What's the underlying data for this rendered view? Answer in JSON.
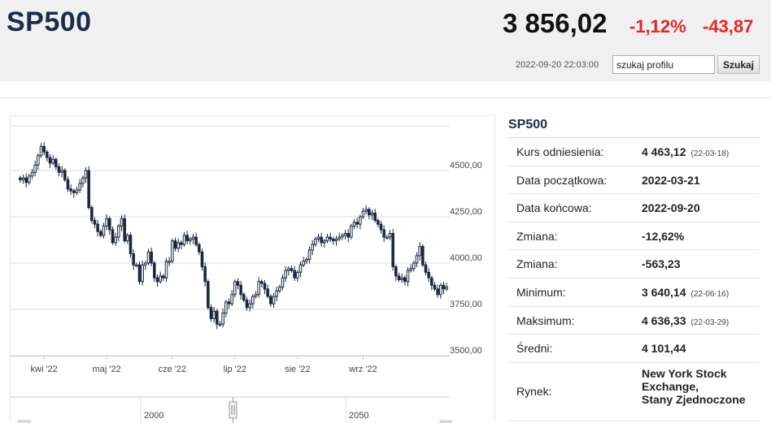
{
  "header": {
    "ticker": "SP500",
    "price": "3 856,02",
    "change_pct": "-1,12%",
    "change_abs": "-43,87",
    "timestamp": "2022-09-20 22:03:00",
    "search_placeholder": "szukaj profilu",
    "search_button": "Szukaj",
    "change_color": "#e4262a"
  },
  "info": {
    "title": "SP500",
    "rows": [
      {
        "label": "Kurs odniesienia:",
        "value": "4 463,12",
        "sub": "(22-03-18)"
      },
      {
        "label": "Data początkowa:",
        "value": "2022-03-21",
        "sub": ""
      },
      {
        "label": "Data końcowa:",
        "value": "2022-09-20",
        "sub": ""
      },
      {
        "label": "Zmiana:",
        "value": "-12,62%",
        "sub": ""
      },
      {
        "label": "Zmiana:",
        "value": "-563,23",
        "sub": ""
      },
      {
        "label": "Minimum:",
        "value": "3 640,14",
        "sub": "(22-06-16)"
      },
      {
        "label": "Maksimum:",
        "value": "4 636,33",
        "sub": "(22-03-29)"
      },
      {
        "label": "Średni:",
        "value": "4 101,44",
        "sub": ""
      }
    ],
    "market_label": "Rynek:",
    "market_value": [
      "New York Stock",
      "Exchange,",
      "Stany Zjednoczone"
    ]
  },
  "chart_data": {
    "type": "candlestick",
    "y_ticks": [
      "4500,00",
      "4250,00",
      "4000,00",
      "3750,00",
      "3500,00"
    ],
    "y_tick_values": [
      4500,
      4250,
      4000,
      3750,
      3500
    ],
    "ylim": [
      3500,
      4750
    ],
    "x_labels": [
      "kwi '22",
      "maj '22",
      "cze '22",
      "lip '22",
      "sie '22",
      "wrz '22"
    ],
    "x_label_positions": [
      8,
      29,
      51,
      72,
      93,
      115
    ],
    "navigator_labels": [
      "2000",
      "2050"
    ],
    "grid": "horizontal",
    "close": [
      4450,
      4460,
      4435,
      4470,
      4490,
      4530,
      4580,
      4630,
      4600,
      4570,
      4540,
      4560,
      4520,
      4490,
      4500,
      4450,
      4400,
      4390,
      4380,
      4395,
      4430,
      4460,
      4500,
      4300,
      4230,
      4210,
      4170,
      4150,
      4200,
      4240,
      4180,
      4110,
      4140,
      4200,
      4240,
      4120,
      4150,
      4050,
      3990,
      3990,
      3900,
      3990,
      4000,
      4060,
      4000,
      3920,
      3900,
      3930,
      3920,
      4010,
      4010,
      4120,
      4080,
      4110,
      4100,
      4150,
      4120,
      4130,
      4140,
      4100,
      4060,
      3980,
      3900,
      3760,
      3700,
      3740,
      3670,
      3670,
      3730,
      3790,
      3780,
      3830,
      3900,
      3880,
      3830,
      3800,
      3760,
      3780,
      3820,
      3830,
      3900,
      3890,
      3860,
      3820,
      3780,
      3820,
      3850,
      3870,
      3920,
      3960,
      3970,
      3960,
      3920,
      3950,
      3990,
      4010,
      4020,
      4070,
      4100,
      4130,
      4140,
      4110,
      4120,
      4140,
      4130,
      4120,
      4130,
      4140,
      4150,
      4160,
      4140,
      4200,
      4220,
      4210,
      4250,
      4280,
      4290,
      4260,
      4270,
      4230,
      4210,
      4180,
      4140,
      4140,
      4160,
      3980,
      3930,
      3910,
      3920,
      3900,
      3960,
      3970,
      4000,
      4040,
      4090,
      3990,
      3950,
      3920,
      3880,
      3860,
      3830,
      3880,
      3860,
      3870
    ]
  }
}
